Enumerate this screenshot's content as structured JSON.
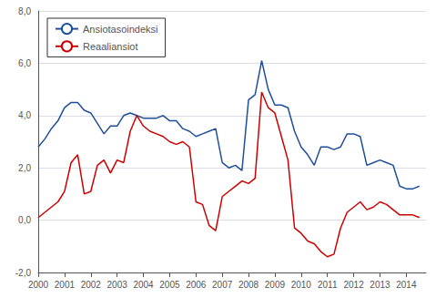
{
  "chart_data": {
    "type": "line",
    "x": [
      2000,
      2000.25,
      2000.5,
      2000.75,
      2001,
      2001.25,
      2001.5,
      2001.75,
      2002,
      2002.25,
      2002.5,
      2002.75,
      2003,
      2003.25,
      2003.5,
      2003.75,
      2004,
      2004.25,
      2004.5,
      2004.75,
      2005,
      2005.25,
      2005.5,
      2005.75,
      2006,
      2006.25,
      2006.5,
      2006.75,
      2007,
      2007.25,
      2007.5,
      2007.75,
      2008,
      2008.25,
      2008.5,
      2008.75,
      2009,
      2009.25,
      2009.5,
      2009.75,
      2010,
      2010.25,
      2010.5,
      2010.75,
      2011,
      2011.25,
      2011.5,
      2011.75,
      2012,
      2012.25,
      2012.5,
      2012.75,
      2013,
      2013.25,
      2013.5,
      2013.75,
      2014,
      2014.25,
      2014.5
    ],
    "series": [
      {
        "name": "Ansiotasoindeksi",
        "color": "#1F4E9B",
        "values": [
          2.8,
          3.1,
          3.5,
          3.8,
          4.3,
          4.5,
          4.5,
          4.2,
          4.1,
          3.7,
          3.3,
          3.6,
          3.6,
          4.0,
          4.1,
          4.0,
          3.9,
          3.9,
          3.9,
          4.0,
          3.8,
          3.8,
          3.5,
          3.4,
          3.2,
          3.3,
          3.4,
          3.5,
          2.2,
          2.0,
          2.1,
          1.9,
          4.6,
          4.8,
          6.1,
          5.0,
          4.4,
          4.4,
          4.3,
          3.4,
          2.8,
          2.5,
          2.1,
          2.8,
          2.8,
          2.7,
          2.8,
          3.3,
          3.3,
          3.2,
          2.1,
          2.2,
          2.3,
          2.2,
          2.1,
          1.3,
          1.2,
          1.2,
          1.3
        ]
      },
      {
        "name": "Reaaliansiot",
        "color": "#CC0000",
        "values": [
          0.1,
          0.3,
          0.5,
          0.7,
          1.1,
          2.2,
          2.5,
          1.0,
          1.1,
          2.1,
          2.3,
          1.8,
          2.3,
          2.2,
          3.4,
          4.0,
          3.6,
          3.4,
          3.3,
          3.2,
          3.0,
          2.9,
          3.0,
          2.8,
          0.7,
          0.6,
          -0.2,
          -0.4,
          0.9,
          1.1,
          1.3,
          1.5,
          1.4,
          1.6,
          4.9,
          4.3,
          4.1,
          3.2,
          2.3,
          -0.3,
          -0.5,
          -0.8,
          -0.9,
          -1.2,
          -1.4,
          -1.3,
          -0.3,
          0.3,
          0.5,
          0.7,
          0.4,
          0.5,
          0.7,
          0.6,
          0.4,
          0.2,
          0.2,
          0.2,
          0.1
        ]
      }
    ],
    "xlim": [
      2000,
      2014.75
    ],
    "xticks": [
      2000,
      2001,
      2002,
      2003,
      2004,
      2005,
      2006,
      2007,
      2008,
      2009,
      2010,
      2011,
      2012,
      2013,
      2014
    ],
    "ylim": [
      -2,
      8
    ],
    "yticks": [
      {
        "value": -2,
        "label": "-2,0"
      },
      {
        "value": 0,
        "label": "0,0"
      },
      {
        "value": 2,
        "label": "2,0"
      },
      {
        "value": 4,
        "label": "4,0"
      },
      {
        "value": 6,
        "label": "6,0"
      },
      {
        "value": 8,
        "label": "8,0"
      }
    ],
    "grid": true,
    "legend": "upper left"
  }
}
